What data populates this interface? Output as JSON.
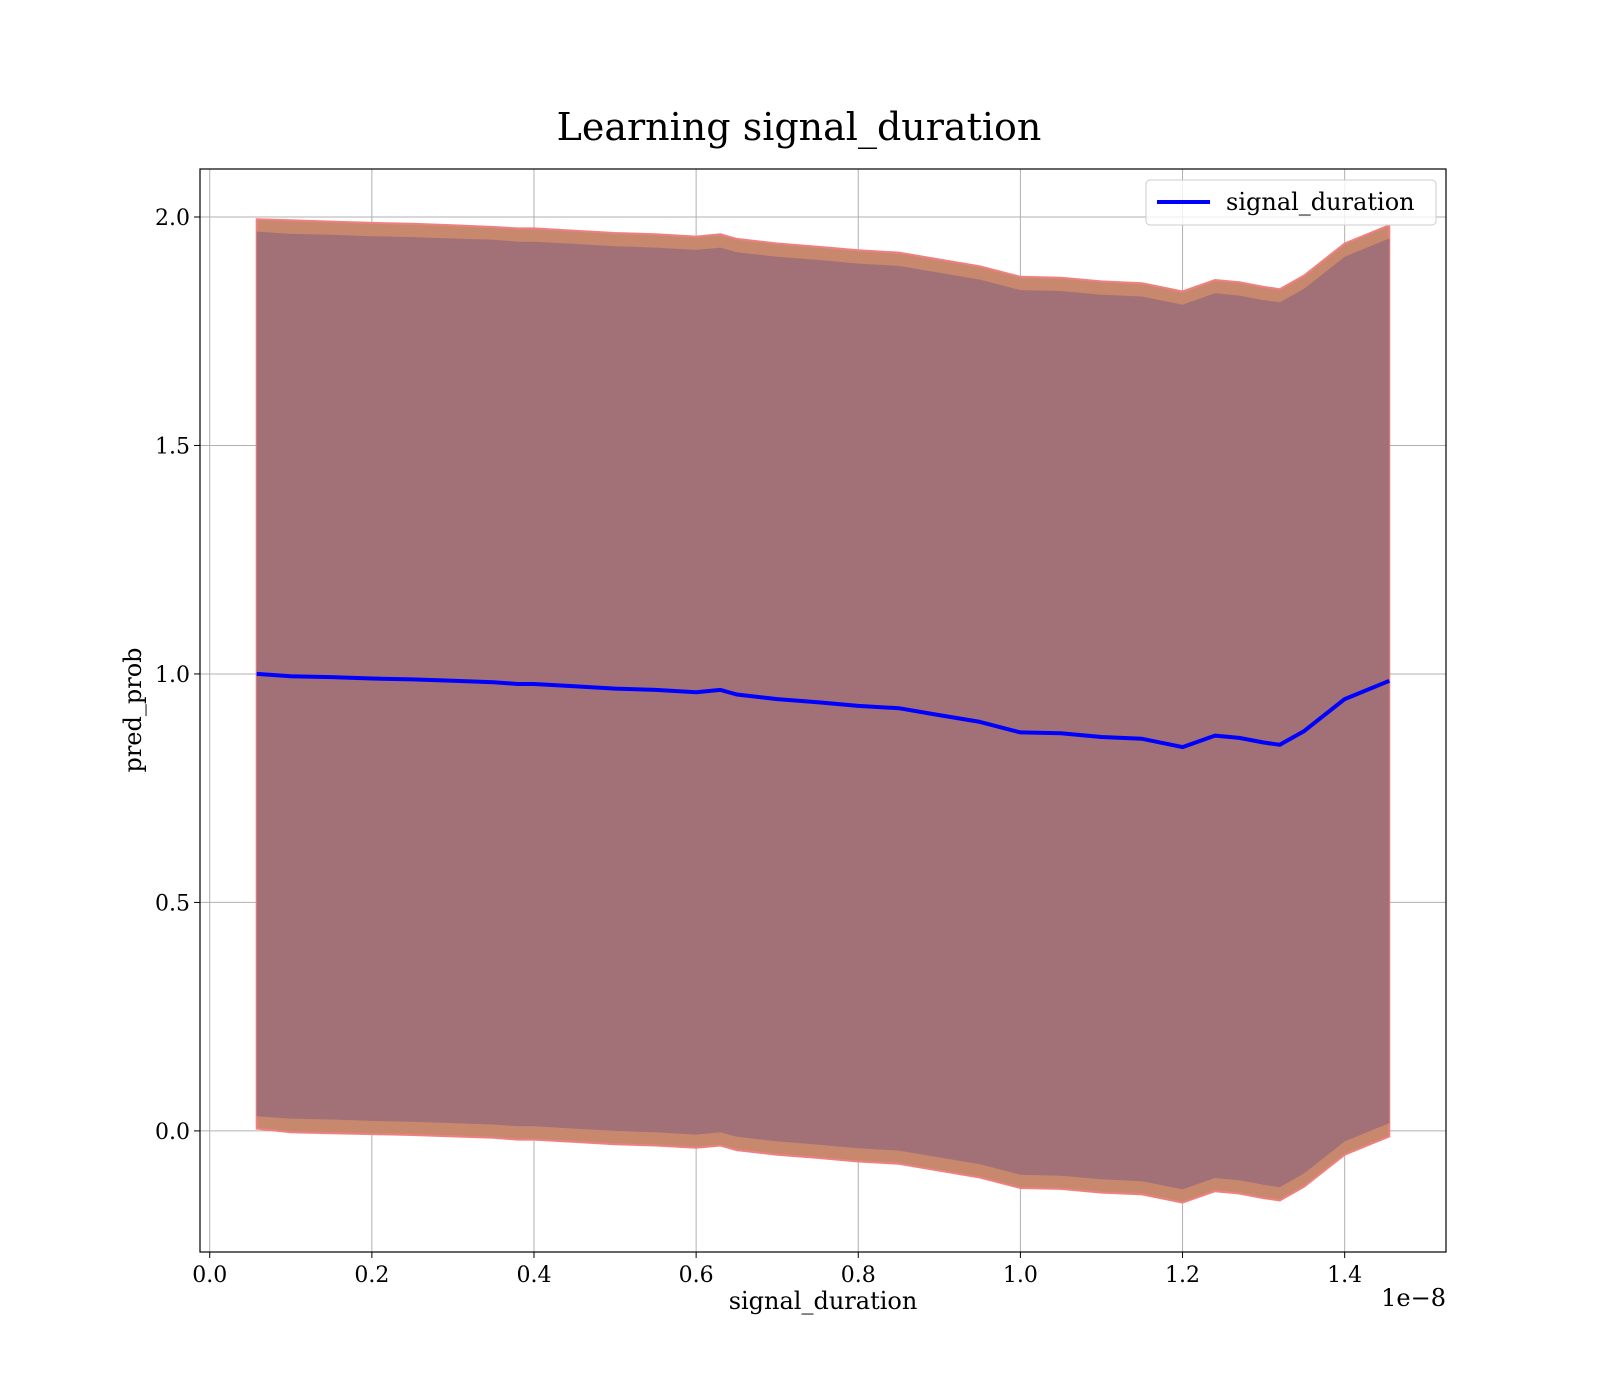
{
  "chart_data": {
    "type": "line",
    "title": "Learning signal_duration",
    "xlabel": "signal_duration",
    "ylabel": "pred_prob",
    "x_offset_label": "1e−8",
    "xlim": [
      -0.012,
      1.525
    ],
    "ylim": [
      -0.265,
      2.105
    ],
    "x_ticks": [
      0.0,
      0.2,
      0.4,
      0.6,
      0.8,
      1.0,
      1.2,
      1.4
    ],
    "x_tick_labels": [
      "0.0",
      "0.2",
      "0.4",
      "0.6",
      "0.8",
      "1.0",
      "1.2",
      "1.4"
    ],
    "y_ticks": [
      0.0,
      0.5,
      1.0,
      1.5,
      2.0
    ],
    "y_tick_labels": [
      "0.0",
      "0.5",
      "1.0",
      "1.5",
      "2.0"
    ],
    "grid": true,
    "legend_position": "top-right",
    "series": [
      {
        "name": "signal_duration",
        "color": "#0000ff",
        "x": [
          0.058,
          0.1,
          0.15,
          0.2,
          0.25,
          0.3,
          0.35,
          0.38,
          0.4,
          0.45,
          0.5,
          0.55,
          0.6,
          0.63,
          0.65,
          0.7,
          0.75,
          0.8,
          0.85,
          0.9,
          0.95,
          1.0,
          1.05,
          1.1,
          1.15,
          1.2,
          1.24,
          1.27,
          1.3,
          1.32,
          1.35,
          1.4,
          1.455
        ],
        "y": [
          1.0,
          0.995,
          0.993,
          0.99,
          0.988,
          0.985,
          0.982,
          0.978,
          0.978,
          0.973,
          0.968,
          0.965,
          0.96,
          0.965,
          0.955,
          0.945,
          0.938,
          0.93,
          0.925,
          0.91,
          0.895,
          0.872,
          0.87,
          0.862,
          0.858,
          0.84,
          0.865,
          0.86,
          0.85,
          0.845,
          0.875,
          0.945,
          0.985
        ]
      }
    ],
    "bands": [
      {
        "kind": "outer",
        "color": "#c8886e",
        "edge_color": "#f08080",
        "x": [
          0.058,
          0.1,
          0.15,
          0.2,
          0.25,
          0.3,
          0.35,
          0.38,
          0.4,
          0.45,
          0.5,
          0.55,
          0.6,
          0.63,
          0.65,
          0.7,
          0.75,
          0.8,
          0.85,
          0.9,
          0.95,
          1.0,
          1.05,
          1.1,
          1.15,
          1.2,
          1.24,
          1.27,
          1.3,
          1.32,
          1.35,
          1.4,
          1.455
        ],
        "upper": [
          1.995,
          1.993,
          1.99,
          1.987,
          1.985,
          1.982,
          1.978,
          1.975,
          1.975,
          1.97,
          1.965,
          1.962,
          1.957,
          1.962,
          1.952,
          1.942,
          1.935,
          1.927,
          1.922,
          1.907,
          1.892,
          1.869,
          1.867,
          1.859,
          1.855,
          1.837,
          1.862,
          1.857,
          1.847,
          1.842,
          1.872,
          1.942,
          1.982
        ],
        "lower": [
          0.005,
          -0.003,
          -0.005,
          -0.007,
          -0.009,
          -0.012,
          -0.015,
          -0.019,
          -0.019,
          -0.024,
          -0.029,
          -0.032,
          -0.037,
          -0.032,
          -0.042,
          -0.052,
          -0.059,
          -0.067,
          -0.072,
          -0.087,
          -0.102,
          -0.125,
          -0.127,
          -0.135,
          -0.139,
          -0.157,
          -0.132,
          -0.137,
          -0.147,
          -0.152,
          -0.122,
          -0.052,
          -0.012
        ]
      },
      {
        "kind": "inner",
        "color": "#a27077",
        "x": [
          0.058,
          0.1,
          0.15,
          0.2,
          0.25,
          0.3,
          0.35,
          0.38,
          0.4,
          0.45,
          0.5,
          0.55,
          0.6,
          0.63,
          0.65,
          0.7,
          0.75,
          0.8,
          0.85,
          0.9,
          0.95,
          1.0,
          1.05,
          1.1,
          1.15,
          1.2,
          1.24,
          1.27,
          1.3,
          1.32,
          1.35,
          1.4,
          1.455
        ],
        "upper": [
          1.968,
          1.963,
          1.961,
          1.958,
          1.956,
          1.953,
          1.95,
          1.946,
          1.946,
          1.941,
          1.936,
          1.933,
          1.928,
          1.933,
          1.923,
          1.913,
          1.906,
          1.898,
          1.893,
          1.878,
          1.863,
          1.84,
          1.838,
          1.83,
          1.826,
          1.808,
          1.833,
          1.828,
          1.818,
          1.813,
          1.843,
          1.913,
          1.953
        ],
        "lower": [
          0.032,
          0.027,
          0.025,
          0.022,
          0.02,
          0.017,
          0.014,
          0.01,
          0.01,
          0.005,
          0.0,
          -0.003,
          -0.008,
          -0.003,
          -0.013,
          -0.023,
          -0.03,
          -0.038,
          -0.043,
          -0.058,
          -0.073,
          -0.096,
          -0.098,
          -0.106,
          -0.11,
          -0.128,
          -0.103,
          -0.108,
          -0.118,
          -0.123,
          -0.093,
          -0.023,
          0.017
        ]
      }
    ]
  }
}
